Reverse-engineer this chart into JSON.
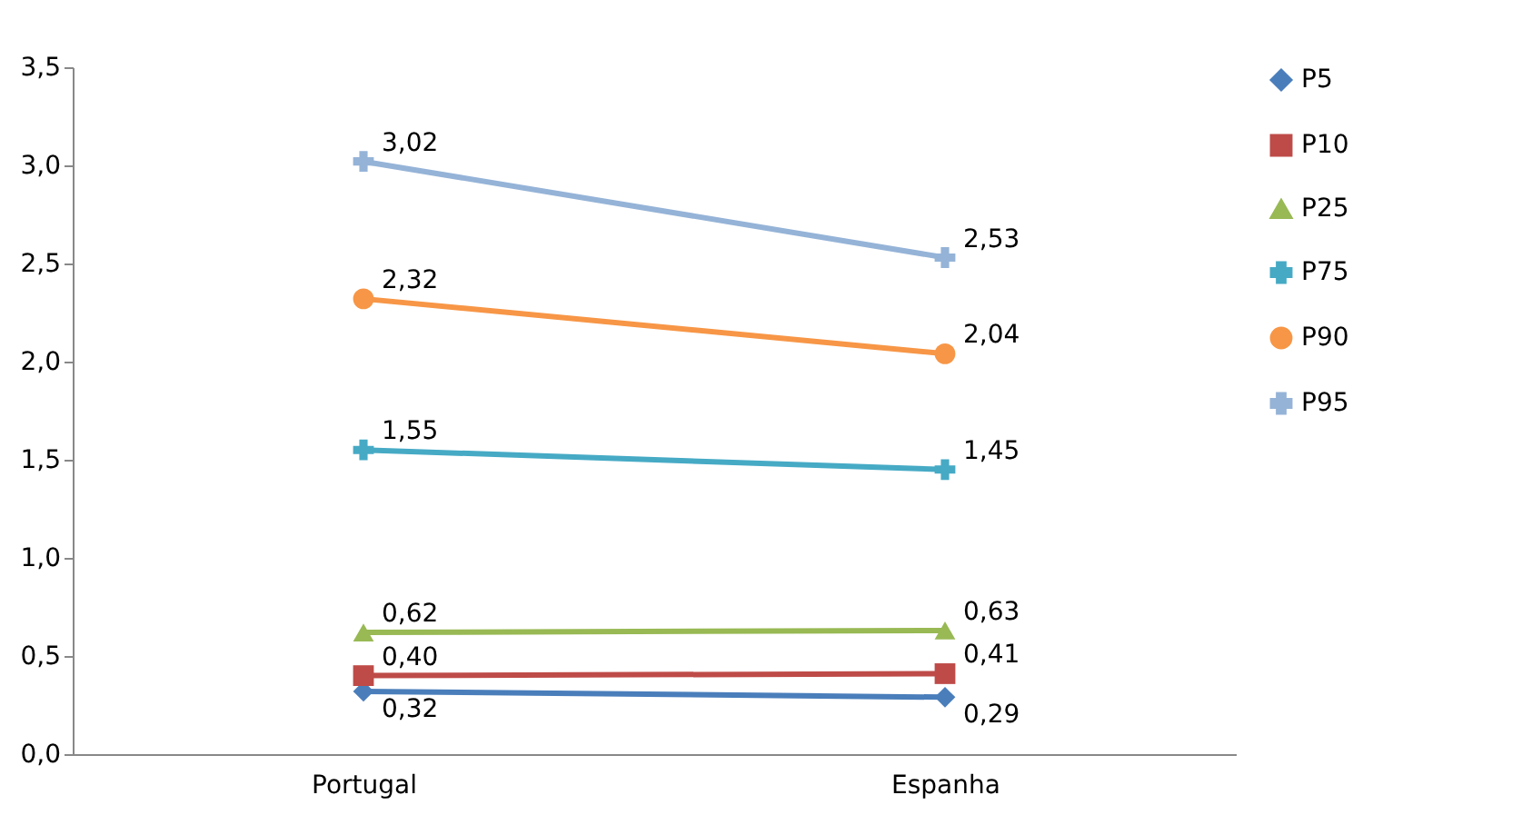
{
  "chart_data": {
    "type": "line",
    "categories": [
      "Portugal",
      "Espanha"
    ],
    "series": [
      {
        "name": "P5",
        "color": "#4a7ebb",
        "marker": "diamond",
        "values": [
          0.32,
          0.29
        ],
        "value_labels": [
          "0,32",
          "0,29"
        ]
      },
      {
        "name": "P10",
        "color": "#be4b48",
        "marker": "square",
        "values": [
          0.4,
          0.41
        ],
        "value_labels": [
          "0,40",
          "0,41"
        ]
      },
      {
        "name": "P25",
        "color": "#98b954",
        "marker": "triangle",
        "values": [
          0.62,
          0.63
        ],
        "value_labels": [
          "0,62",
          "0,63"
        ]
      },
      {
        "name": "P75",
        "color": "#46aac5",
        "marker": "cross",
        "values": [
          1.55,
          1.45
        ],
        "value_labels": [
          "1,55",
          "1,45"
        ]
      },
      {
        "name": "P90",
        "color": "#f79646",
        "marker": "circle",
        "values": [
          2.32,
          2.04
        ],
        "value_labels": [
          "2,32",
          "2,04"
        ]
      },
      {
        "name": "P95",
        "color": "#95b3d7",
        "marker": "cross",
        "values": [
          3.02,
          2.53
        ],
        "value_labels": [
          "3,02",
          "2,53"
        ]
      }
    ],
    "ylim": [
      0,
      3.5
    ],
    "yticks": [
      {
        "value": 0,
        "label": "0,0"
      },
      {
        "value": 0.5,
        "label": "0,5"
      },
      {
        "value": 1,
        "label": "1,0"
      },
      {
        "value": 1.5,
        "label": "1,5"
      },
      {
        "value": 2,
        "label": "2,0"
      },
      {
        "value": 2.5,
        "label": "2,5"
      },
      {
        "value": 3,
        "label": "3,0"
      },
      {
        "value": 3.5,
        "label": "3,5"
      }
    ],
    "grid": false,
    "legend": "right"
  }
}
